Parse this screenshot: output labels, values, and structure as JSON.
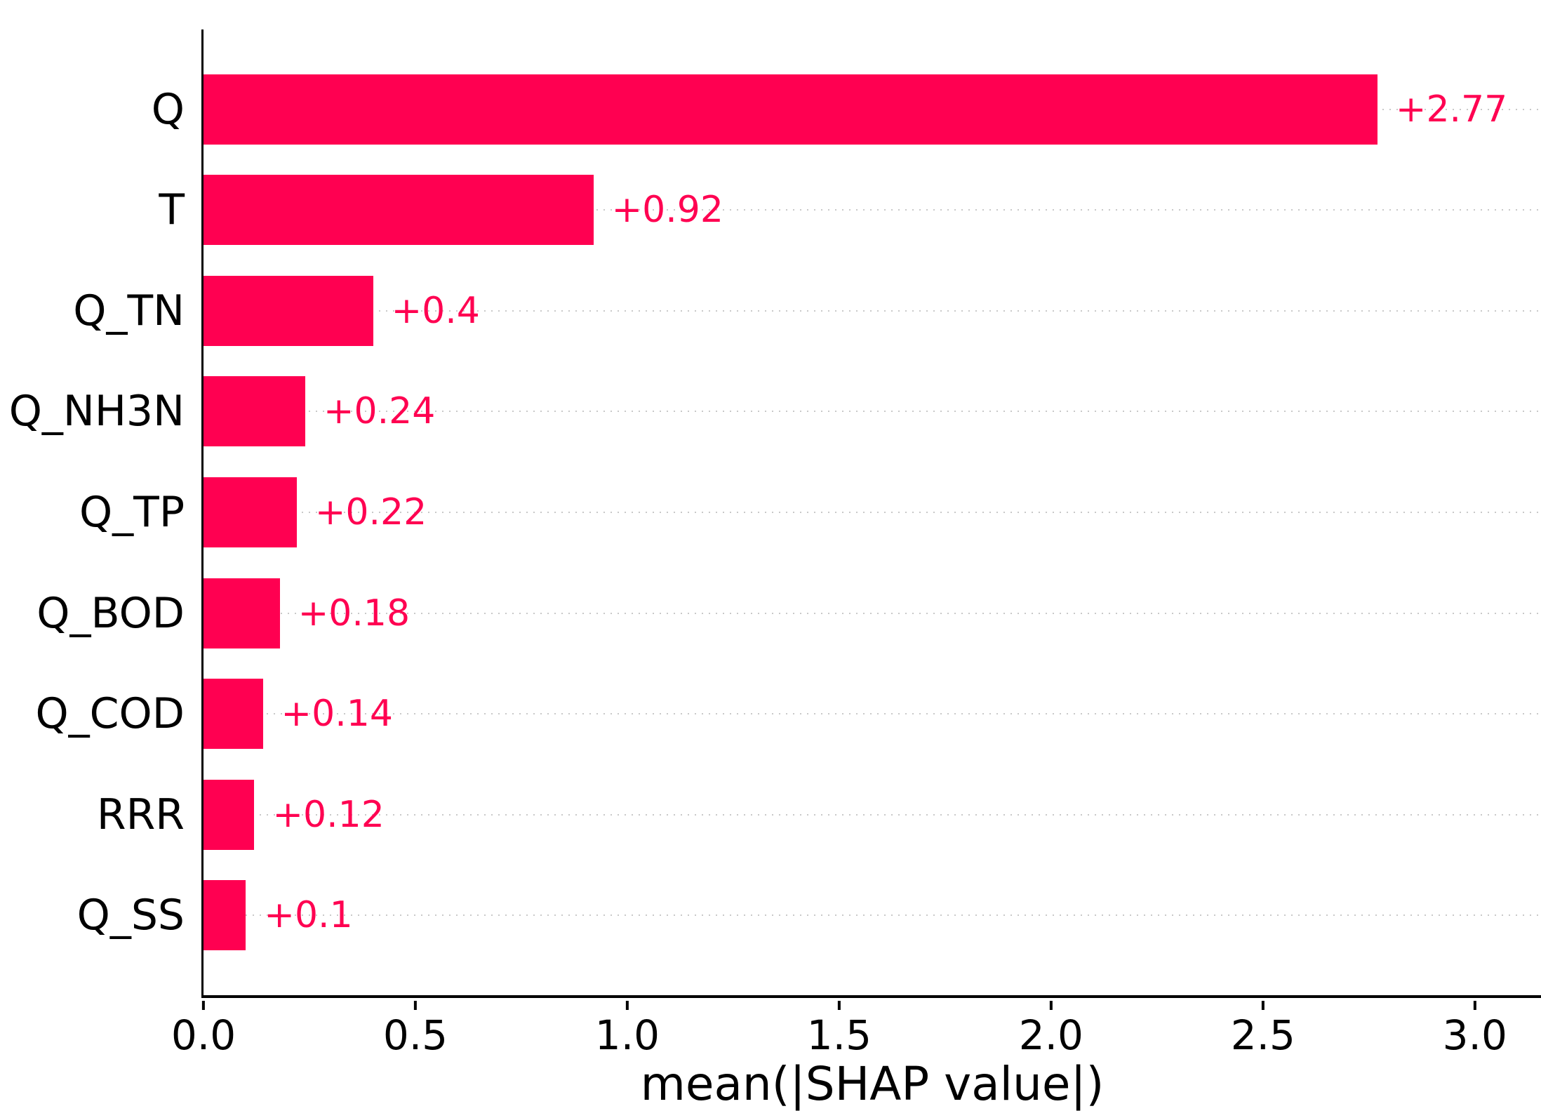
{
  "chart_data": {
    "type": "bar",
    "orientation": "horizontal",
    "title": "",
    "xlabel": "mean(|SHAP value|)",
    "ylabel": "",
    "categories": [
      "Q",
      "T",
      "Q_TN",
      "Q_NH3N",
      "Q_TP",
      "Q_BOD",
      "Q_COD",
      "RRR",
      "Q_SS"
    ],
    "values": [
      2.77,
      0.92,
      0.4,
      0.24,
      0.22,
      0.18,
      0.14,
      0.12,
      0.1
    ],
    "value_labels": [
      "+2.77",
      "+0.92",
      "+0.4",
      "+0.24",
      "+0.22",
      "+0.18",
      "+0.14",
      "+0.12",
      "+0.1"
    ],
    "x_ticks": [
      {
        "value": 0.0,
        "label": "0.0"
      },
      {
        "value": 0.5,
        "label": "0.5"
      },
      {
        "value": 1.0,
        "label": "1.0"
      },
      {
        "value": 1.5,
        "label": "1.5"
      },
      {
        "value": 2.0,
        "label": "2.0"
      },
      {
        "value": 2.5,
        "label": "2.5"
      },
      {
        "value": 3.0,
        "label": "3.0"
      }
    ],
    "xlim": [
      0,
      3.156
    ],
    "grid": "horizontal dotted line per bar, full width",
    "legend": null,
    "spines": [
      "left",
      "bottom"
    ],
    "bar_color": "#ff0051",
    "value_label_color": "#ff0051",
    "axis_color": "#000000",
    "grid_color": "#c9c9c9",
    "background_color": "#ffffff"
  }
}
